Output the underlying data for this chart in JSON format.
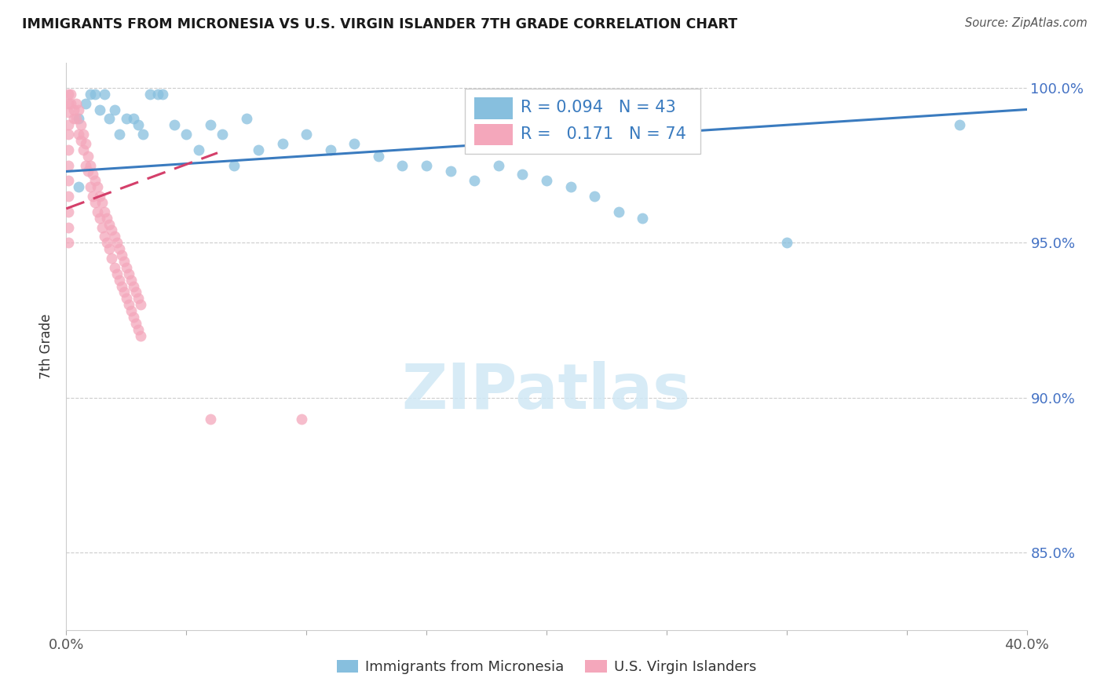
{
  "title": "IMMIGRANTS FROM MICRONESIA VS U.S. VIRGIN ISLANDER 7TH GRADE CORRELATION CHART",
  "source": "Source: ZipAtlas.com",
  "ylabel": "7th Grade",
  "xlim": [
    0.0,
    0.4
  ],
  "ylim": [
    0.825,
    1.008
  ],
  "ytick_positions": [
    0.85,
    0.9,
    0.95,
    1.0
  ],
  "ytick_labels": [
    "85.0%",
    "90.0%",
    "95.0%",
    "100.0%"
  ],
  "xtick_positions": [
    0.0,
    0.05,
    0.1,
    0.15,
    0.2,
    0.25,
    0.3,
    0.35,
    0.4
  ],
  "xtick_labels": [
    "0.0%",
    "",
    "",
    "",
    "",
    "",
    "",
    "",
    "40.0%"
  ],
  "blue_R": 0.094,
  "blue_N": 43,
  "pink_R": 0.171,
  "pink_N": 74,
  "blue_color": "#87bfde",
  "pink_color": "#f4a7bb",
  "blue_line_color": "#3a7bbf",
  "pink_line_color": "#d43f6a",
  "legend_text_color": "#3a7bbf",
  "blue_line_x": [
    0.0,
    0.4
  ],
  "blue_line_y": [
    0.973,
    0.993
  ],
  "pink_line_x": [
    0.0,
    0.063
  ],
  "pink_line_y": [
    0.961,
    0.979
  ],
  "blue_scatter_x": [
    0.005,
    0.008,
    0.01,
    0.012,
    0.014,
    0.016,
    0.018,
    0.02,
    0.022,
    0.025,
    0.028,
    0.03,
    0.032,
    0.035,
    0.038,
    0.04,
    0.045,
    0.05,
    0.055,
    0.06,
    0.065,
    0.07,
    0.075,
    0.08,
    0.09,
    0.1,
    0.11,
    0.12,
    0.13,
    0.14,
    0.15,
    0.16,
    0.17,
    0.18,
    0.19,
    0.2,
    0.21,
    0.22,
    0.23,
    0.24,
    0.3,
    0.372,
    0.005
  ],
  "blue_scatter_y": [
    0.99,
    0.995,
    0.998,
    0.998,
    0.993,
    0.998,
    0.99,
    0.993,
    0.985,
    0.99,
    0.99,
    0.988,
    0.985,
    0.998,
    0.998,
    0.998,
    0.988,
    0.985,
    0.98,
    0.988,
    0.985,
    0.975,
    0.99,
    0.98,
    0.982,
    0.985,
    0.98,
    0.982,
    0.978,
    0.975,
    0.975,
    0.973,
    0.97,
    0.975,
    0.972,
    0.97,
    0.968,
    0.965,
    0.96,
    0.958,
    0.95,
    0.988,
    0.968
  ],
  "pink_scatter_x": [
    0.002,
    0.002,
    0.003,
    0.003,
    0.004,
    0.004,
    0.005,
    0.005,
    0.006,
    0.006,
    0.007,
    0.007,
    0.008,
    0.008,
    0.009,
    0.009,
    0.01,
    0.01,
    0.011,
    0.011,
    0.012,
    0.012,
    0.013,
    0.013,
    0.014,
    0.014,
    0.015,
    0.015,
    0.016,
    0.016,
    0.017,
    0.017,
    0.018,
    0.018,
    0.019,
    0.019,
    0.02,
    0.02,
    0.021,
    0.021,
    0.022,
    0.022,
    0.023,
    0.023,
    0.024,
    0.024,
    0.025,
    0.025,
    0.026,
    0.026,
    0.027,
    0.027,
    0.028,
    0.028,
    0.029,
    0.029,
    0.03,
    0.03,
    0.031,
    0.031,
    0.001,
    0.001,
    0.001,
    0.001,
    0.001,
    0.001,
    0.001,
    0.001,
    0.001,
    0.001,
    0.001,
    0.001,
    0.06,
    0.098
  ],
  "pink_scatter_y": [
    0.998,
    0.995,
    0.993,
    0.99,
    0.995,
    0.99,
    0.993,
    0.985,
    0.988,
    0.983,
    0.985,
    0.98,
    0.982,
    0.975,
    0.978,
    0.973,
    0.975,
    0.968,
    0.972,
    0.965,
    0.97,
    0.963,
    0.968,
    0.96,
    0.965,
    0.958,
    0.963,
    0.955,
    0.96,
    0.952,
    0.958,
    0.95,
    0.956,
    0.948,
    0.954,
    0.945,
    0.952,
    0.942,
    0.95,
    0.94,
    0.948,
    0.938,
    0.946,
    0.936,
    0.944,
    0.934,
    0.942,
    0.932,
    0.94,
    0.93,
    0.938,
    0.928,
    0.936,
    0.926,
    0.934,
    0.924,
    0.932,
    0.922,
    0.93,
    0.92,
    0.998,
    0.995,
    0.992,
    0.988,
    0.985,
    0.98,
    0.975,
    0.97,
    0.965,
    0.96,
    0.955,
    0.95,
    0.893,
    0.893
  ]
}
